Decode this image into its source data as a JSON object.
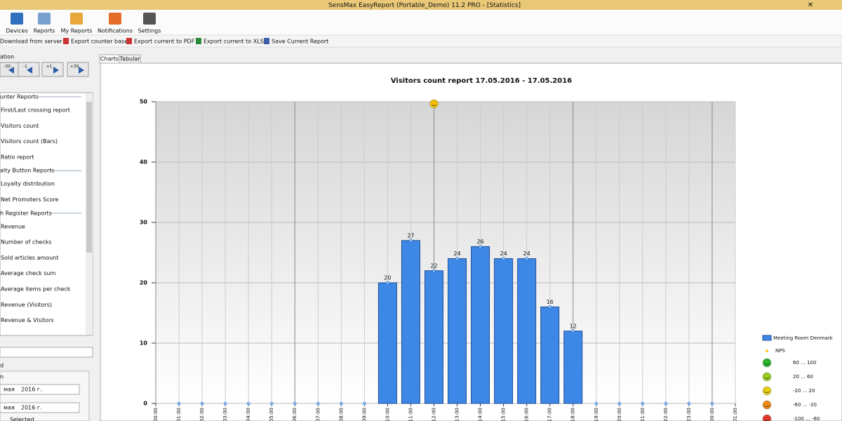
{
  "window": {
    "title": "SensMax EasyReport (Portable_Demo) 11.2 PRO - [Statistics]"
  },
  "toolbar": [
    "Devices",
    "Reports",
    "My Reports",
    "Notifications",
    "Settings"
  ],
  "actions": [
    "Download from server",
    "Export counter base",
    "Export current to PDF",
    "Export current to XLS",
    "Save Current Report"
  ],
  "navigation": {
    "label": "ation",
    "buttons": [
      "-30",
      "-1",
      "+1",
      "+30"
    ]
  },
  "report_groups": [
    {
      "title": "unter Reports",
      "items": [
        "First/Last crossing report",
        "Visitors count",
        "Visitors count (Bars)",
        "Ratio report"
      ]
    },
    {
      "title": "alty Button Reports",
      "items": [
        "Loyalty distribution",
        "Net Promoters Score"
      ]
    },
    {
      "title": "h Register Reports",
      "items": [
        "Revenue",
        "Number of checks",
        "Sold articles amount",
        "Average check sum",
        "Average items per check",
        "Revenue (Visitors)",
        "Revenue & Visitors"
      ]
    }
  ],
  "period": {
    "label1": "d",
    "label2": "n",
    "dates": [
      {
        "month": "мая",
        "year": "2016 г."
      },
      {
        "month": "мая",
        "year": "2016 г."
      }
    ],
    "selected": "Selected"
  },
  "tabs": [
    "Charts",
    "Tabular"
  ],
  "chart_data": {
    "type": "bar",
    "title": "Visitors count report 17.05.2016 - 17.05.2016",
    "categories": [
      "00:00",
      "01:00",
      "02:00",
      "03:00",
      "04:00",
      "05:00",
      "06:00",
      "07:00",
      "08:00",
      "09:00",
      "10:00",
      "11:00",
      "12:00",
      "13:00",
      "14:00",
      "15:00",
      "16:00",
      "17:00",
      "18:00",
      "19:00",
      "20:00",
      "21:00",
      "22:00",
      "23:00",
      "00:00",
      "01:00"
    ],
    "series": [
      {
        "name": "Meeting Room Denmark",
        "color": "#3d87e6",
        "values": [
          null,
          0,
          0,
          0,
          0,
          0,
          0,
          0,
          0,
          0,
          20,
          27,
          22,
          24,
          26,
          24,
          24,
          16,
          12,
          0,
          0,
          0,
          0,
          0,
          0,
          null
        ]
      },
      {
        "name": "NPS",
        "color": "#f2c200",
        "values": [
          null,
          null,
          null,
          null,
          null,
          null,
          null,
          null,
          null,
          null,
          null,
          null,
          50,
          null,
          null,
          null,
          null,
          null,
          null,
          null,
          null,
          null,
          null,
          null,
          null,
          null
        ]
      }
    ],
    "ylim": [
      0,
      50
    ],
    "yticks": [
      0,
      10,
      20,
      30,
      40,
      50
    ],
    "grid": true,
    "nps_legend": [
      {
        "label": "60 ... 100",
        "color": "#2bb52b"
      },
      {
        "label": "20 ... 60",
        "color": "#9acb1f"
      },
      {
        "label": "-20 ... 20",
        "color": "#e6cf12"
      },
      {
        "label": "-60 ... -20",
        "color": "#f08a12"
      },
      {
        "label": "-100 ... -60",
        "color": "#e5372a"
      }
    ]
  }
}
